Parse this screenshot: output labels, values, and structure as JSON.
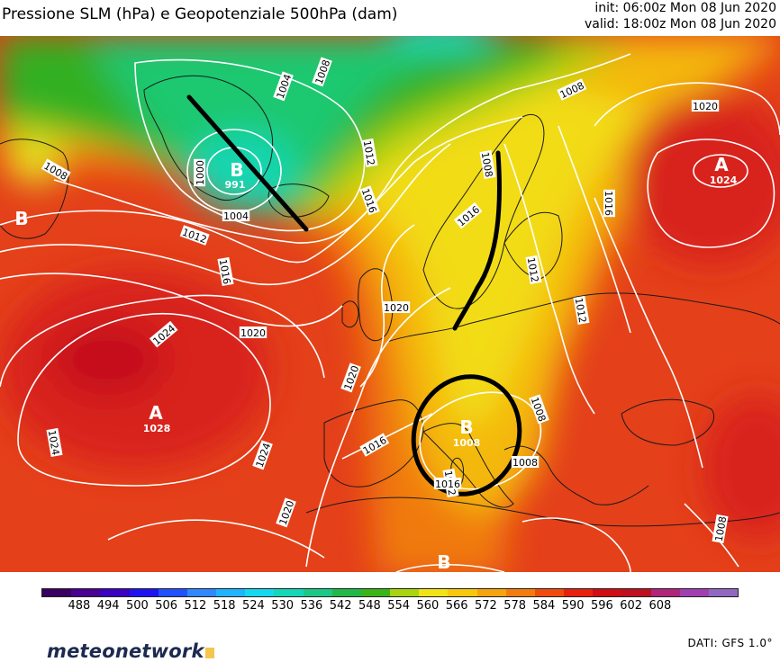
{
  "header": {
    "title": "Pressione SLM (hPa) e Geopotenziale 500hPa (dam)",
    "init": "init: 06:00z Mon 08 Jun 2020",
    "valid": "valid: 18:00z Mon 08 Jun 2020"
  },
  "map": {
    "pressure_centers": [
      {
        "symbol": "B",
        "value": "991"
      },
      {
        "symbol": "A",
        "value": "1024"
      },
      {
        "symbol": "A",
        "value": "1028"
      },
      {
        "symbol": "B",
        "value": "1008"
      },
      {
        "symbol": "B",
        "value": ""
      },
      {
        "symbol": "B",
        "value": ""
      }
    ],
    "isobar_labels": [
      "1004",
      "1008",
      "1008",
      "1000",
      "1004",
      "1012",
      "1016",
      "1020",
      "1024",
      "1016",
      "1012",
      "1008",
      "1020",
      "1016",
      "1012",
      "1012",
      "1016",
      "1020",
      "1024",
      "1020",
      "1016",
      "1020",
      "1024",
      "1012",
      "1008",
      "1008",
      "1008",
      "1016",
      "1008"
    ]
  },
  "colorbar": {
    "labels": [
      "488",
      "494",
      "500",
      "506",
      "512",
      "518",
      "524",
      "530",
      "536",
      "542",
      "548",
      "554",
      "560",
      "566",
      "572",
      "578",
      "584",
      "590",
      "596",
      "602",
      "608"
    ],
    "colors": [
      "#3a0060",
      "#4a0090",
      "#3b00c0",
      "#1d14f0",
      "#2050ff",
      "#2f88ff",
      "#1eb4ff",
      "#14d8ee",
      "#15d6b8",
      "#1cc886",
      "#20b848",
      "#3ab418",
      "#a8d410",
      "#f2e218",
      "#f7c80e",
      "#f6a40e",
      "#f47c0e",
      "#f04a0e",
      "#e8200e",
      "#d00c14",
      "#bf1020",
      "#b0247a",
      "#a040b0",
      "#9068c0"
    ]
  },
  "footer": {
    "logo_text": "meteonetwork",
    "source": "DATI: GFS 1.0°"
  }
}
